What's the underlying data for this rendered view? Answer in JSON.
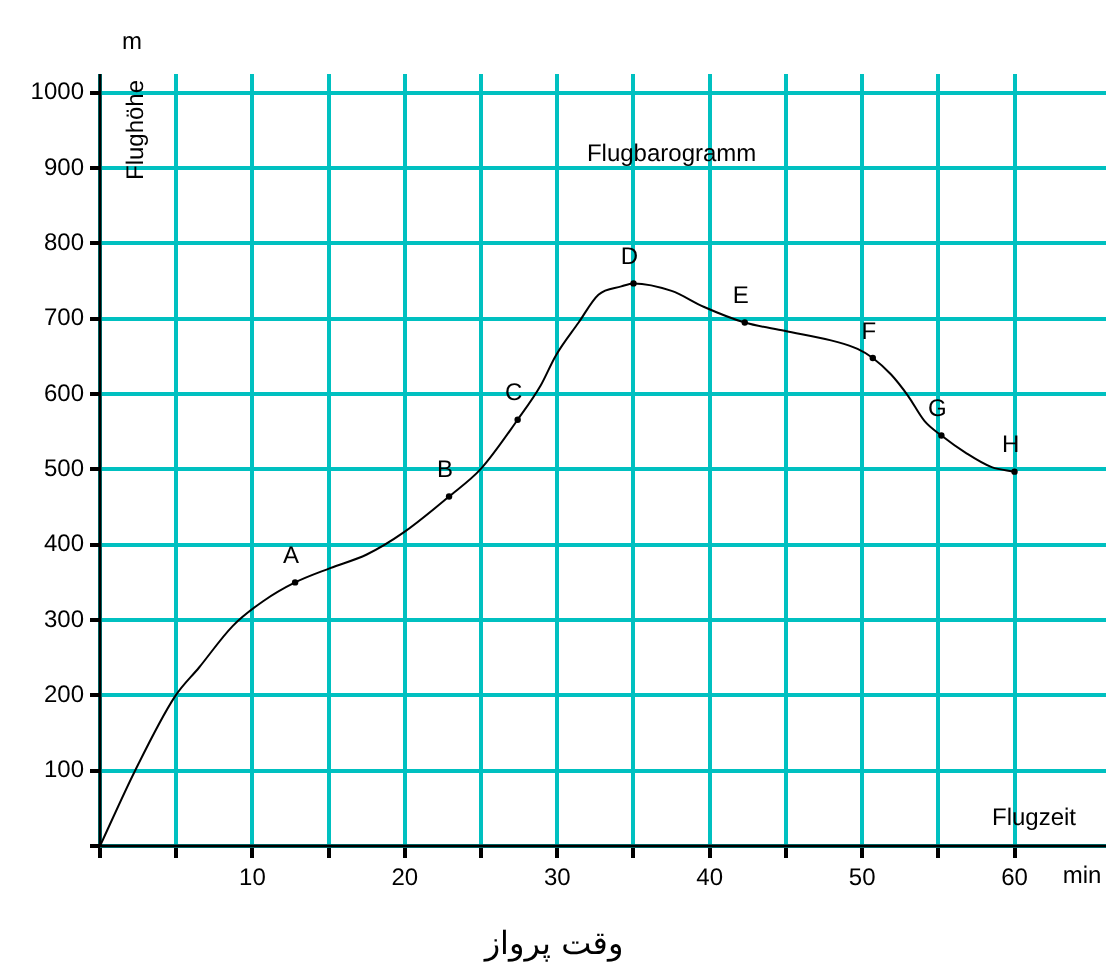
{
  "chart_data": {
    "type": "line",
    "title": "Flugbarogramm",
    "xlabel": "Flugzeit",
    "ylabel": "Flughöhe",
    "x": [
      0,
      2.3,
      4.9,
      6.5,
      8.7,
      10.7,
      12.8,
      15.1,
      17.5,
      19.9,
      22.9,
      25.0,
      27.4,
      28.9,
      29.9,
      31.4,
      32.7,
      34.2,
      35.0,
      37.5,
      39.6,
      42.3,
      44.9,
      48.4,
      49.7,
      50.7,
      51.9,
      53.0,
      54.1,
      55.2,
      56.8,
      58.5,
      60.0
    ],
    "series": [
      {
        "color": "#000000",
        "values": [
          0,
          100,
          198,
          237,
          292,
          325,
          350,
          369,
          387,
          416,
          464,
          501,
          566,
          611,
          651,
          695,
          732,
          743,
          747,
          737,
          716,
          695,
          684,
          669,
          660,
          648,
          626,
          598,
          564,
          545,
          522,
          503,
          497
        ]
      }
    ],
    "xlim": [
      0,
      66
    ],
    "ylim": [
      0,
      1025
    ],
    "xticks": [
      {
        "value": 0,
        "label": null
      },
      {
        "value": 5,
        "label": null
      },
      10,
      {
        "value": 15,
        "label": null
      },
      20,
      {
        "value": 25,
        "label": null
      },
      30,
      {
        "value": 35,
        "label": null
      },
      40,
      {
        "value": 45,
        "label": null
      },
      50,
      {
        "value": 55,
        "label": null
      },
      60
    ],
    "yticks": [
      {
        "value": 0,
        "label": null
      },
      100,
      200,
      300,
      400,
      500,
      600,
      700,
      800,
      900,
      1000
    ],
    "grid": true,
    "legend": false,
    "marker": "none",
    "line_style": "solid",
    "annotations": [
      "m",
      "min",
      "وقت پرواز",
      {
        "text": "A",
        "x": 12.8,
        "y": 350
      },
      {
        "text": "B",
        "x": 22.9,
        "y": 464
      },
      {
        "text": "C",
        "x": 27.4,
        "y": 566
      },
      {
        "text": "D",
        "x": 35.0,
        "y": 747
      },
      {
        "text": "E",
        "x": 42.3,
        "y": 695
      },
      {
        "text": "F",
        "x": 50.7,
        "y": 648
      },
      {
        "text": "G",
        "x": 55.2,
        "y": 545
      },
      {
        "text": "H",
        "x": 60.0,
        "y": 497
      }
    ]
  }
}
